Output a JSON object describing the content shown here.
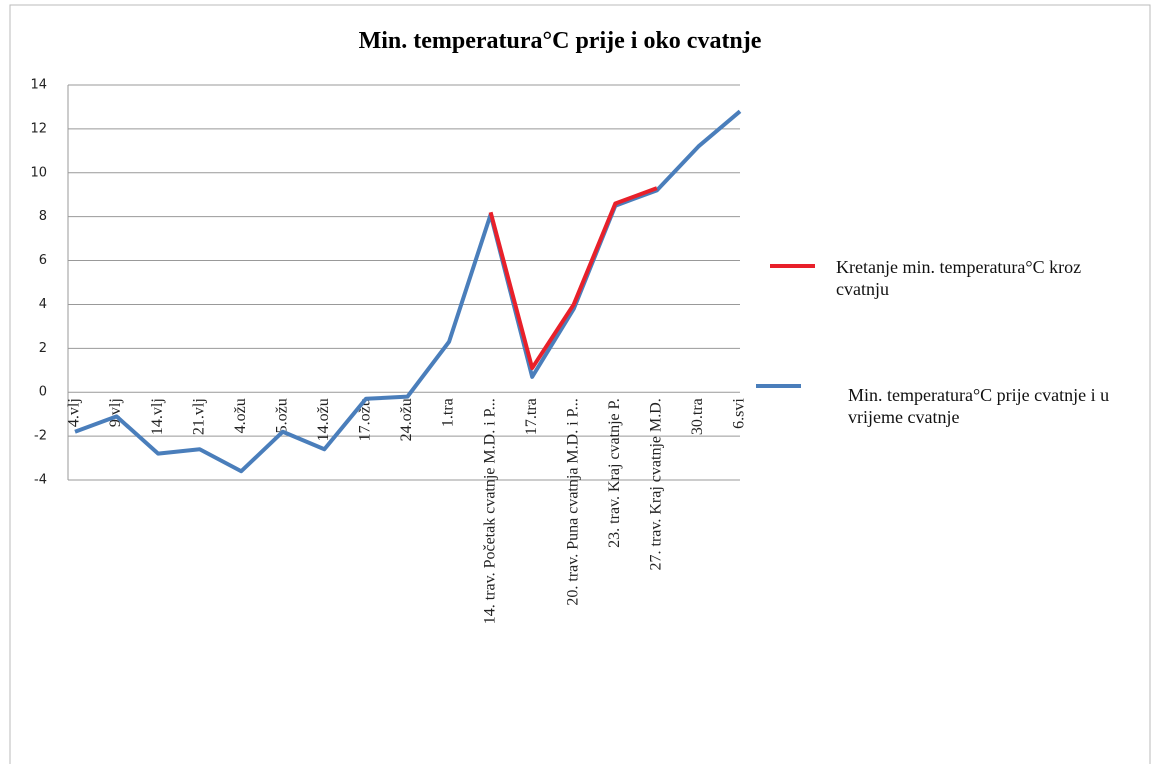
{
  "chart_data": {
    "type": "line",
    "title": "Min. temperatura°C  prije i oko cvatnje",
    "categories": [
      "4.vlj",
      "9.vlj",
      "14.vlj",
      "21.vlj",
      "4.ožu",
      "5.ožu",
      "14.ožu",
      "17.ožu",
      "24.ožu",
      "1.tra",
      "14. trav. Početak cvatnje M.D. i P...",
      "17.tra",
      "20. trav. Puna cvatnja M.D. i P...",
      "23. trav. Kraj cvatnje P.",
      "27. trav. Kraj cvatnje M.D.",
      "30.tra",
      "6.svi"
    ],
    "series": [
      {
        "name": "Kretanje min. temperatura°C kroz cvatnju",
        "color": "#e8202a",
        "values": [
          null,
          null,
          null,
          null,
          null,
          null,
          null,
          null,
          null,
          null,
          8.2,
          1.1,
          4.0,
          8.6,
          9.3,
          null,
          null
        ]
      },
      {
        "name": "Min. temperatura°C  prije cvatnje i u vrijeme cvatnje",
        "color": "#4a7ebb",
        "values": [
          -1.8,
          -1.1,
          -2.8,
          -2.6,
          -3.6,
          -1.8,
          -2.6,
          -0.3,
          -0.2,
          2.3,
          8.1,
          0.7,
          3.8,
          8.5,
          9.2,
          11.2,
          12.8
        ]
      }
    ],
    "ylim": [
      -4,
      14
    ],
    "yticks": [
      -4,
      -2,
      0,
      2,
      4,
      6,
      8,
      10,
      12,
      14
    ],
    "grid": true,
    "legend": "right"
  }
}
